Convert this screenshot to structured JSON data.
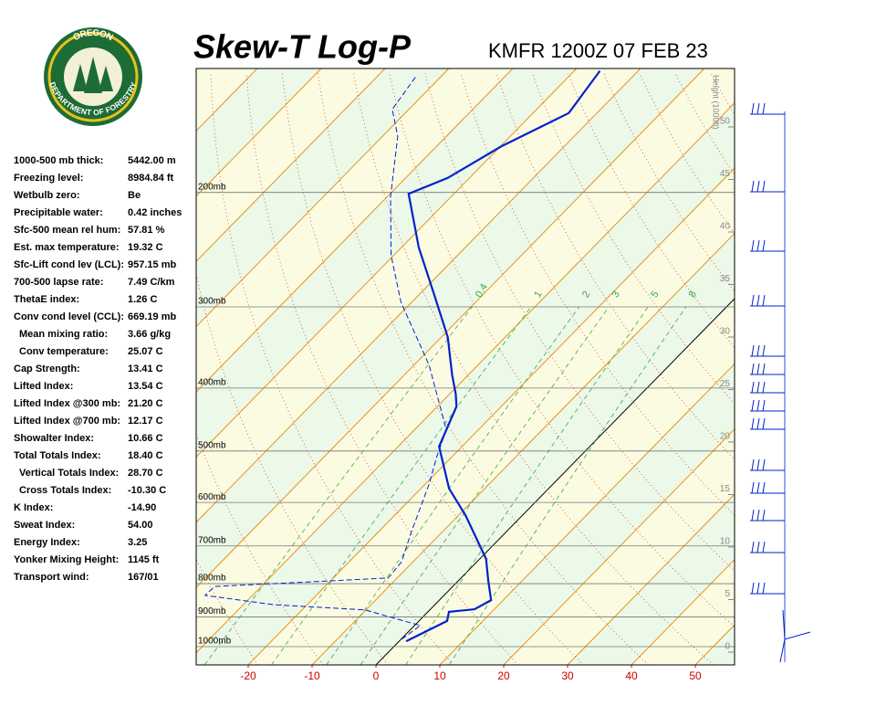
{
  "header": {
    "title": "Skew-T Log-P",
    "station": "KMFR 1200Z 07 FEB 23",
    "logo_top": "OREGON",
    "logo_bottom": "DEPARTMENT OF FORESTRY"
  },
  "indices": [
    {
      "label": "1000-500 mb thick:",
      "value": "5442.00 m",
      "indent": false
    },
    {
      "label": "Freezing level:",
      "value": "8984.84 ft",
      "indent": false
    },
    {
      "label": "Wetbulb zero:",
      "value": "Be",
      "indent": false
    },
    {
      "label": "Precipitable water:",
      "value": "0.42 inches",
      "indent": false
    },
    {
      "label": "Sfc-500 mean rel hum:",
      "value": "57.81 %",
      "indent": false
    },
    {
      "label": "Est. max temperature:",
      "value": "19.32 C",
      "indent": false
    },
    {
      "label": "Sfc-Lift cond lev (LCL):",
      "value": "957.15 mb",
      "indent": false
    },
    {
      "label": "700-500 lapse rate:",
      "value": "7.49 C/km",
      "indent": false
    },
    {
      "label": "ThetaE index:",
      "value": "1.26 C",
      "indent": false
    },
    {
      "label": "Conv cond level (CCL):",
      "value": "669.19 mb",
      "indent": false
    },
    {
      "label": "Mean mixing ratio:",
      "value": "3.66 g/kg",
      "indent": true
    },
    {
      "label": "Conv temperature:",
      "value": "25.07 C",
      "indent": true
    },
    {
      "label": "Cap Strength:",
      "value": "13.41 C",
      "indent": false
    },
    {
      "label": "Lifted Index:",
      "value": "13.54 C",
      "indent": false
    },
    {
      "label": "Lifted Index @300 mb:",
      "value": "21.20 C",
      "indent": false
    },
    {
      "label": "Lifted Index @700 mb:",
      "value": "12.17 C",
      "indent": false
    },
    {
      "label": "Showalter Index:",
      "value": "10.66 C",
      "indent": false
    },
    {
      "label": "Total Totals Index:",
      "value": "18.40 C",
      "indent": false
    },
    {
      "label": "Vertical Totals Index:",
      "value": "28.70 C",
      "indent": true
    },
    {
      "label": "Cross Totals Index:",
      "value": "-10.30 C",
      "indent": true
    },
    {
      "label": "K Index:",
      "value": "-14.90",
      "indent": false
    },
    {
      "label": "Sweat Index:",
      "value": "54.00",
      "indent": false
    },
    {
      "label": "Energy Index:",
      "value": "3.25",
      "indent": false
    },
    {
      "label": "Yonker Mixing Height:",
      "value": "1145 ft",
      "indent": false
    },
    {
      "label": "Transport wind:",
      "value": "167/01",
      "indent": false
    }
  ],
  "chart": {
    "type": "skew-t",
    "pressure_levels": [
      {
        "value": 1000,
        "label": "1000mb"
      },
      {
        "value": 900,
        "label": "900mb"
      },
      {
        "value": 800,
        "label": "800mb"
      },
      {
        "value": 700,
        "label": "700mb"
      },
      {
        "value": 600,
        "label": "600mb"
      },
      {
        "value": 500,
        "label": "500mb"
      },
      {
        "value": 400,
        "label": "400mb"
      },
      {
        "value": 300,
        "label": "300mb"
      },
      {
        "value": 200,
        "label": "200mb"
      }
    ],
    "temperature_ticks": [
      -20,
      -10,
      0,
      10,
      20,
      30,
      40,
      50
    ],
    "height_label": "Height (1000ft)",
    "height_ticks": [
      0,
      5,
      10,
      15,
      20,
      25,
      30,
      35,
      40,
      45,
      50
    ],
    "mixing_ratio_lines": [
      0.4,
      1,
      2,
      3,
      5,
      8
    ],
    "temperature": {
      "color": "#0022cc",
      "pressure": [
        981,
        913,
        884,
        876,
        848,
        792,
        733,
        629,
        571,
        492,
        427,
        408,
        382,
        334,
        285,
        243,
        201,
        190,
        170,
        151,
        130
      ],
      "values": [
        1.1,
        4.4,
        3.3,
        6.9,
        8.1,
        4.7,
        1.0,
        -8.8,
        -15.6,
        -23.6,
        -27.0,
        -29.1,
        -32.5,
        -39.0,
        -48.1,
        -57.3,
        -67.1,
        -63.4,
        -59.9,
        -54.4,
        -56.0
      ]
    },
    "dewpoint": {
      "color": "#0022cc",
      "pressure": [
        974,
        928,
        878,
        862,
        834,
        808,
        795,
        784,
        740,
        672,
        562,
        510,
        464,
        369,
        295,
        250,
        203,
        164,
        149,
        133
      ],
      "values": [
        0.1,
        0.9,
        -10.1,
        -25.2,
        -37.4,
        -37.3,
        -23.0,
        -11.4,
        -11.8,
        -14.6,
        -19.4,
        -22.4,
        -25.0,
        -37.6,
        -51.7,
        -60.4,
        -69.5,
        -77.6,
        -82.6,
        -83.9
      ]
    }
  }
}
